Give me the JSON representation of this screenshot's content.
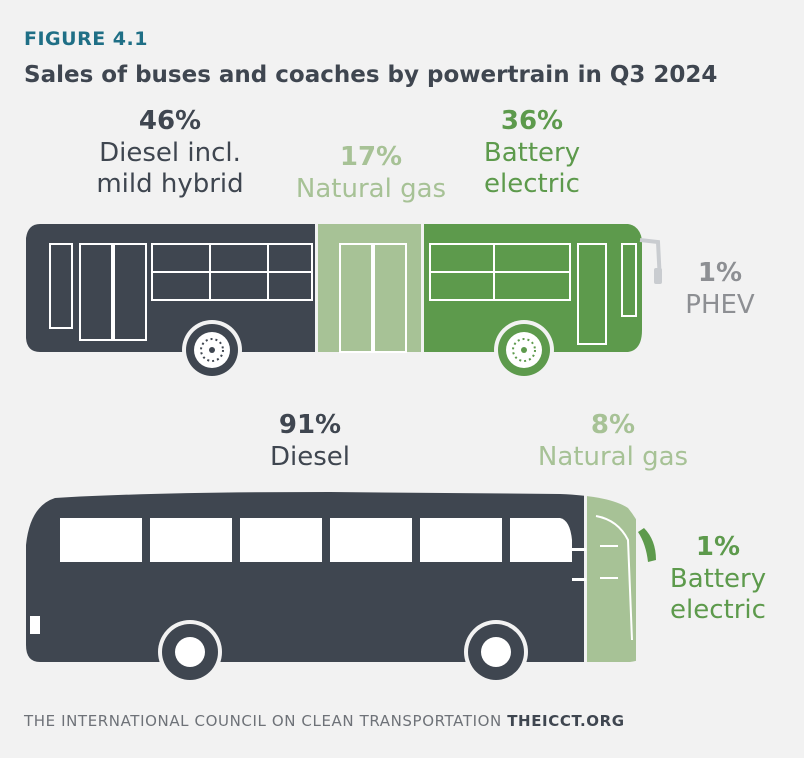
{
  "figure_label": "FIGURE 4.1",
  "title": "Sales of buses and coaches by powertrain in Q3 2024",
  "colors": {
    "diesel": "#3f4650",
    "natural_gas": "#a7c296",
    "battery_electric": "#5d9a4c",
    "phev": "#8d8f93",
    "background": "#f2f2f2"
  },
  "chart_data": [
    {
      "type": "bar",
      "subject": "bus",
      "categories": [
        "Diesel incl. mild hybrid",
        "Natural gas",
        "Battery electric",
        "PHEV"
      ],
      "values": [
        46,
        17,
        36,
        1
      ],
      "labels": [
        "46%",
        "17%",
        "36%",
        "1%"
      ],
      "unit": "%"
    },
    {
      "type": "bar",
      "subject": "coach",
      "categories": [
        "Diesel",
        "Natural gas",
        "Battery electric"
      ],
      "values": [
        91,
        8,
        1
      ],
      "labels": [
        "91%",
        "8%",
        "1%"
      ],
      "unit": "%"
    }
  ],
  "labels": {
    "bus": {
      "diesel": {
        "pct": "46%",
        "line1": "Diesel incl.",
        "line2": "mild hybrid"
      },
      "natural_gas": {
        "pct": "17%",
        "line1": "Natural gas"
      },
      "battery": {
        "pct": "36%",
        "line1": "Battery",
        "line2": "electric"
      },
      "phev": {
        "pct": "1%",
        "line1": "PHEV"
      }
    },
    "coach": {
      "diesel": {
        "pct": "91%",
        "line1": "Diesel"
      },
      "natural_gas": {
        "pct": "8%",
        "line1": "Natural gas"
      },
      "battery": {
        "pct": "1%",
        "line1": "Battery",
        "line2": "electric"
      }
    }
  },
  "footer": {
    "org": "THE INTERNATIONAL COUNCIL ON CLEAN TRANSPORTATION",
    "site": "THEICCT.ORG"
  }
}
